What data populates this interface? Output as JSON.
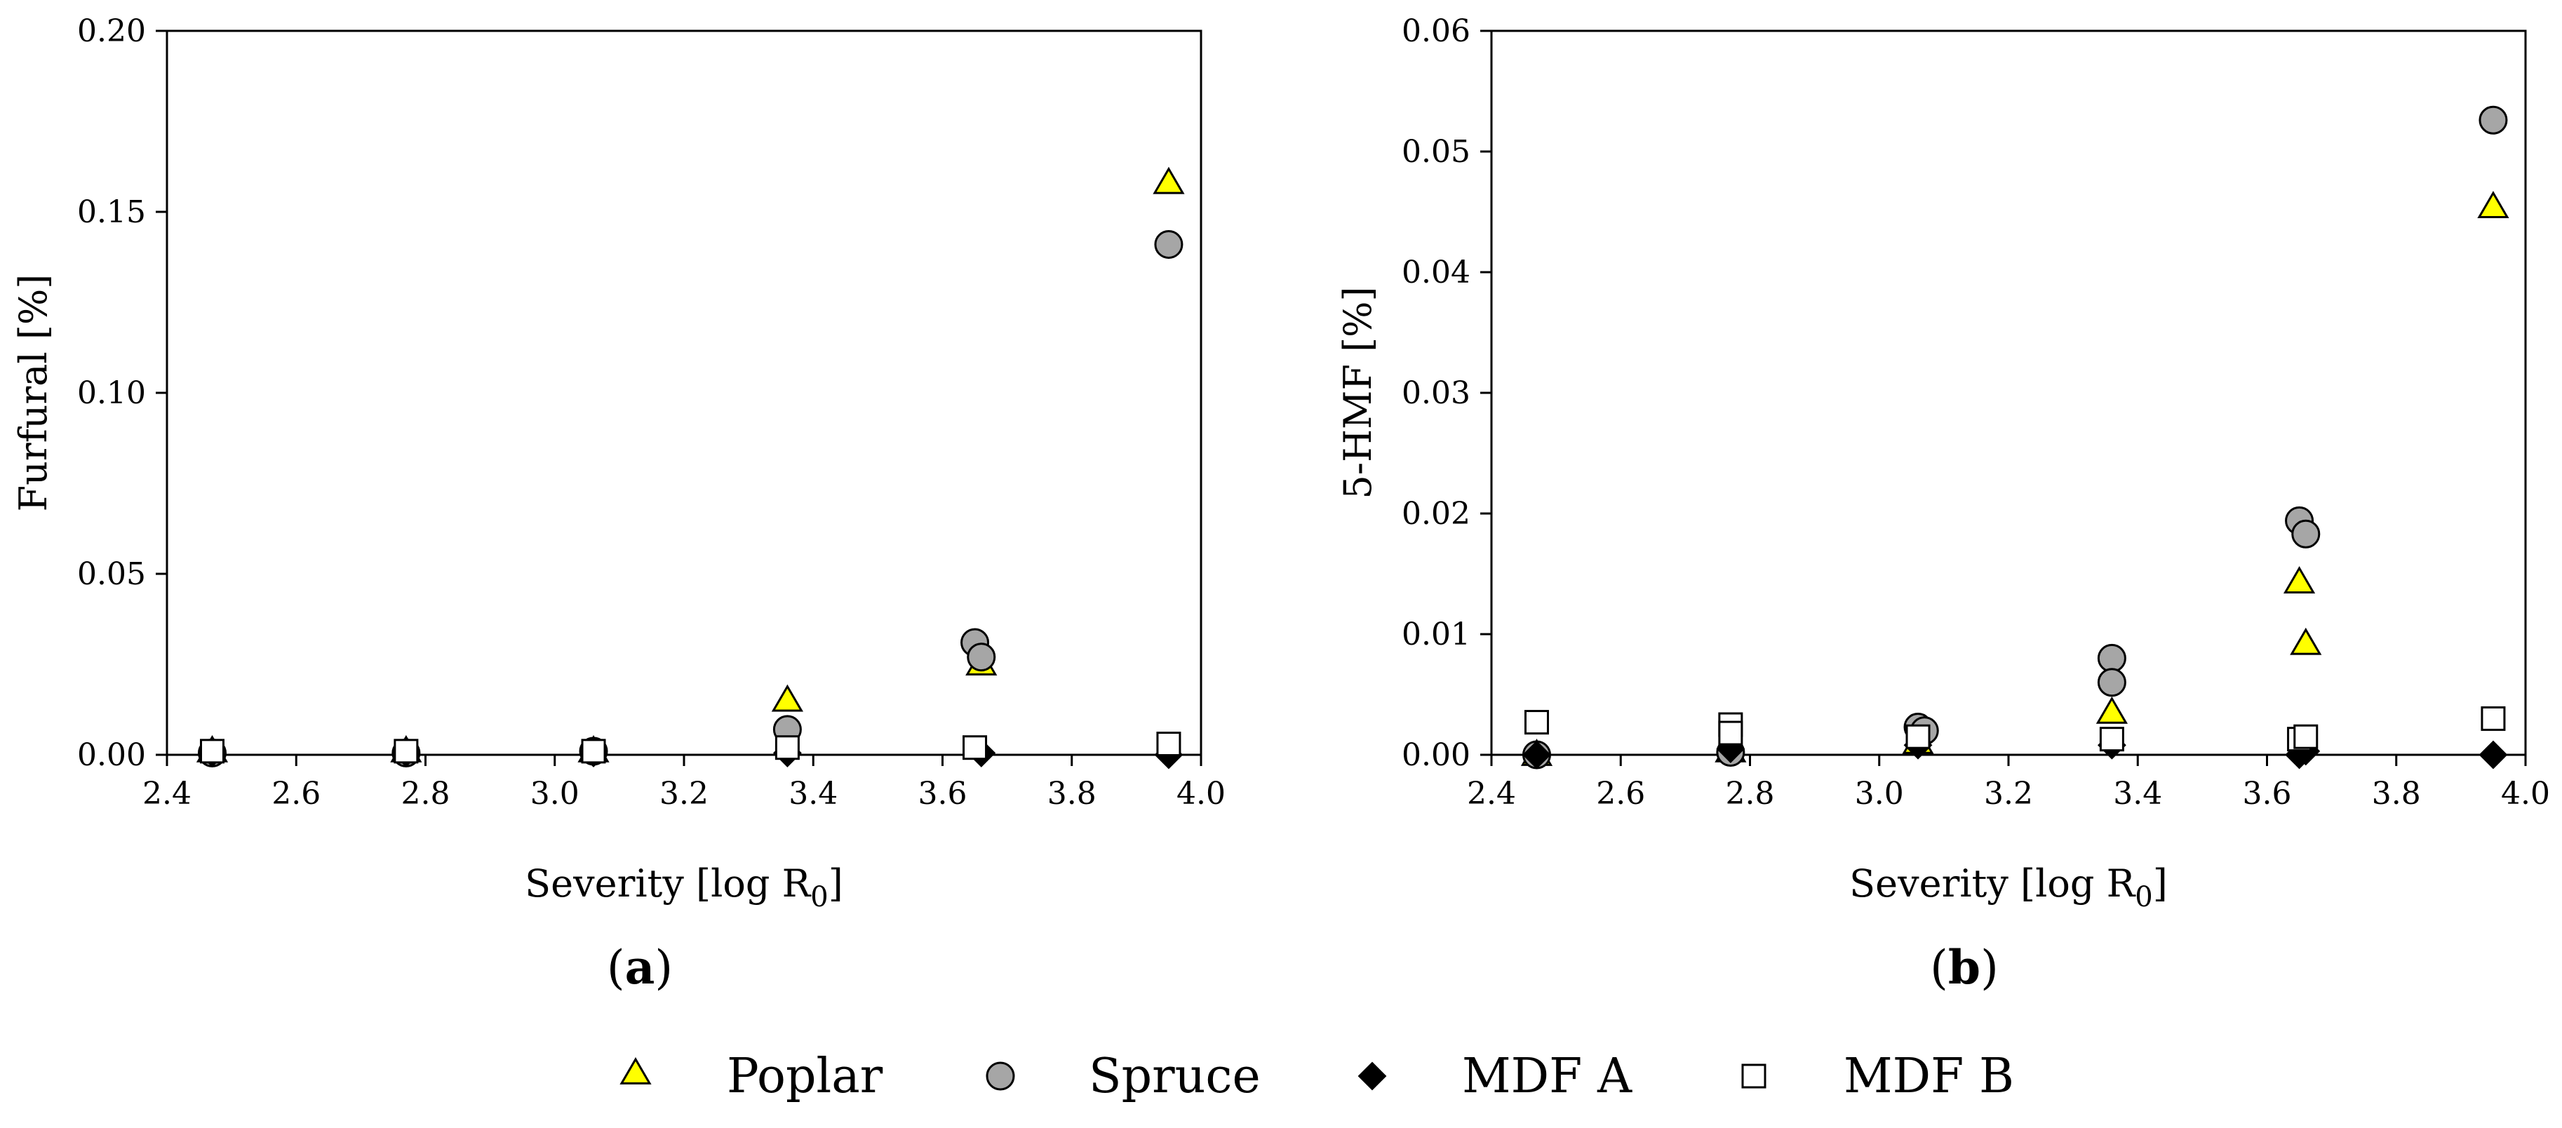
{
  "chart_data": [
    {
      "type": "scatter",
      "panel": "a",
      "panel_label_prefix": "(",
      "panel_label_letter": "a",
      "panel_label_suffix": ")",
      "title": "",
      "xlabel_main": "Severity [log R",
      "xlabel_sub": "0",
      "xlabel_end": "]",
      "ylabel": "Furfural [%]",
      "xlim": [
        2.4,
        4.0
      ],
      "ylim": [
        0,
        0.2
      ],
      "xticks": [
        2.4,
        2.6,
        2.8,
        3.0,
        3.2,
        3.4,
        3.6,
        3.8,
        4.0
      ],
      "yticks": [
        0,
        0.05,
        0.1,
        0.15,
        0.2
      ],
      "xtick_labels": [
        "2.4",
        "2.6",
        "2.8",
        "3.0",
        "3.2",
        "3.4",
        "3.6",
        "3.8",
        "4.0"
      ],
      "ytick_labels": [
        "0.00",
        "0.05",
        "0.10",
        "0.15",
        "0.20"
      ],
      "grid": false,
      "series": [
        {
          "name": "Poplar",
          "marker": "triangle",
          "color": "#ffff00",
          "points": [
            [
              2.47,
              0.001
            ],
            [
              2.77,
              0.001
            ],
            [
              3.06,
              0.001
            ],
            [
              3.36,
              0.015
            ],
            [
              3.66,
              0.025
            ],
            [
              3.95,
              0.158
            ]
          ]
        },
        {
          "name": "Spruce",
          "marker": "circle",
          "color": "#a6a6a6",
          "points": [
            [
              2.47,
              0.0005
            ],
            [
              2.77,
              0.0005
            ],
            [
              3.06,
              0.001
            ],
            [
              3.36,
              0.007
            ],
            [
              3.65,
              0.031
            ],
            [
              3.66,
              0.027
            ],
            [
              3.95,
              0.141
            ]
          ]
        },
        {
          "name": "MDF A",
          "marker": "diamond",
          "color": "#000000",
          "points": [
            [
              2.47,
              0.0005
            ],
            [
              2.77,
              0.0005
            ],
            [
              3.06,
              0.0005
            ],
            [
              3.36,
              0.0005
            ],
            [
              3.66,
              0.0005
            ],
            [
              3.95,
              0.0
            ]
          ]
        },
        {
          "name": "MDF B",
          "marker": "square",
          "color": "#ffffff",
          "points": [
            [
              2.47,
              0.001
            ],
            [
              2.77,
              0.001
            ],
            [
              3.06,
              0.001
            ],
            [
              3.36,
              0.002
            ],
            [
              3.65,
              0.002
            ],
            [
              3.95,
              0.003
            ]
          ]
        }
      ]
    },
    {
      "type": "scatter",
      "panel": "b",
      "panel_label_prefix": "(",
      "panel_label_letter": "b",
      "panel_label_suffix": ")",
      "title": "",
      "xlabel_main": "Severity [log R",
      "xlabel_sub": "0",
      "xlabel_end": "]",
      "ylabel": "5-HMF [%]",
      "xlim": [
        2.4,
        4.0
      ],
      "ylim": [
        0,
        0.06
      ],
      "xticks": [
        2.4,
        2.6,
        2.8,
        3.0,
        3.2,
        3.4,
        3.6,
        3.8,
        4.0
      ],
      "yticks": [
        0,
        0.01,
        0.02,
        0.03,
        0.04,
        0.05,
        0.06
      ],
      "xtick_labels": [
        "2.4",
        "2.6",
        "2.8",
        "3.0",
        "3.2",
        "3.4",
        "3.6",
        "3.8",
        "4.0"
      ],
      "ytick_labels": [
        "0.00",
        "0.01",
        "0.02",
        "0.03",
        "0.04",
        "0.05",
        "0.06"
      ],
      "grid": false,
      "series": [
        {
          "name": "Poplar",
          "marker": "triangle",
          "color": "#ffff00",
          "points": [
            [
              2.47,
              0.0
            ],
            [
              2.77,
              0.0003
            ],
            [
              3.06,
              0.001
            ],
            [
              3.36,
              0.0035
            ],
            [
              3.65,
              0.0143
            ],
            [
              3.66,
              0.0092
            ],
            [
              3.95,
              0.0454
            ]
          ]
        },
        {
          "name": "Spruce",
          "marker": "circle",
          "color": "#a6a6a6",
          "points": [
            [
              2.47,
              0.0
            ],
            [
              2.77,
              0.0002
            ],
            [
              3.06,
              0.0023
            ],
            [
              3.07,
              0.002
            ],
            [
              3.36,
              0.008
            ],
            [
              3.36,
              0.006
            ],
            [
              3.65,
              0.0194
            ],
            [
              3.66,
              0.0183
            ],
            [
              3.95,
              0.0526
            ]
          ]
        },
        {
          "name": "MDF A",
          "marker": "diamond",
          "color": "#000000",
          "points": [
            [
              2.47,
              0.0
            ],
            [
              2.77,
              0.0005
            ],
            [
              3.06,
              0.0008
            ],
            [
              3.36,
              0.0008
            ],
            [
              3.65,
              0.0
            ],
            [
              3.66,
              0.0003
            ],
            [
              3.95,
              0.0
            ]
          ]
        },
        {
          "name": "MDF B",
          "marker": "square",
          "color": "#ffffff",
          "points": [
            [
              2.47,
              0.0027
            ],
            [
              2.77,
              0.0025
            ],
            [
              2.77,
              0.0018
            ],
            [
              3.06,
              0.0015
            ],
            [
              3.36,
              0.0013
            ],
            [
              3.65,
              0.0013
            ],
            [
              3.66,
              0.0015
            ],
            [
              3.95,
              0.003
            ]
          ]
        }
      ]
    }
  ],
  "legend": {
    "items": [
      {
        "label": "Poplar",
        "marker": "triangle",
        "color": "#ffff00"
      },
      {
        "label": "Spruce",
        "marker": "circle",
        "color": "#a6a6a6"
      },
      {
        "label": "MDF A",
        "marker": "diamond",
        "color": "#000000"
      },
      {
        "label": "MDF B",
        "marker": "square",
        "color": "#ffffff"
      }
    ]
  }
}
